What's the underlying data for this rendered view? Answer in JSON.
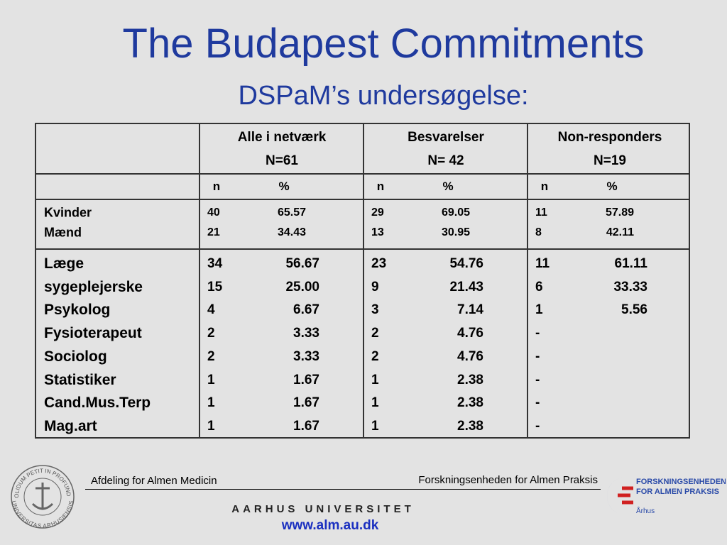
{
  "title": "The Budapest Commitments",
  "subtitle": "DSPaM’s undersøgelse:",
  "table": {
    "groups": [
      {
        "name": "Alle i netværk",
        "n": "N=61"
      },
      {
        "name": "Besvarelser",
        "n": "N= 42"
      },
      {
        "name": "Non-responders",
        "n": "N=19"
      }
    ],
    "subheader": [
      [
        "n",
        "%"
      ],
      [
        "n",
        "%"
      ],
      [
        "n",
        "%"
      ]
    ],
    "gender": [
      {
        "label": "Kvinder",
        "values": [
          [
            "40",
            "65.57"
          ],
          [
            "29",
            "69.05"
          ],
          [
            "11",
            "57.89"
          ]
        ]
      },
      {
        "label": "Mænd",
        "values": [
          [
            "21",
            "34.43"
          ],
          [
            "13",
            "30.95"
          ],
          [
            "8",
            "42.11"
          ]
        ]
      }
    ],
    "professions": [
      {
        "label": "Læge",
        "values": [
          [
            "34",
            "56.67"
          ],
          [
            "23",
            "54.76"
          ],
          [
            "11",
            "61.11"
          ]
        ]
      },
      {
        "label": "sygeplejerske",
        "values": [
          [
            "15",
            "25.00"
          ],
          [
            "9",
            "21.43"
          ],
          [
            "6",
            "33.33"
          ]
        ]
      },
      {
        "label": "Psykolog",
        "values": [
          [
            "4",
            "6.67"
          ],
          [
            "3",
            "7.14"
          ],
          [
            "1",
            "5.56"
          ]
        ]
      },
      {
        "label": "Fysioterapeut",
        "values": [
          [
            "2",
            "3.33"
          ],
          [
            "2",
            "4.76"
          ],
          [
            "-"
          ]
        ]
      },
      {
        "label": "Sociolog",
        "values": [
          [
            "2",
            "3.33"
          ],
          [
            "2",
            "4.76"
          ],
          [
            "-"
          ]
        ]
      },
      {
        "label": "Statistiker",
        "values": [
          [
            "1",
            "1.67"
          ],
          [
            "1",
            "2.38"
          ],
          [
            "-"
          ]
        ]
      },
      {
        "label": "Cand.Mus.Terp",
        "values": [
          [
            "1",
            "1.67"
          ],
          [
            "1",
            "2.38"
          ],
          [
            "-"
          ]
        ]
      },
      {
        "label": "Mag.art",
        "values": [
          [
            "1",
            "1.67"
          ],
          [
            "1",
            "2.38"
          ],
          [
            "-"
          ]
        ]
      }
    ]
  },
  "footer": {
    "left": "Afdeling for Almen Medicin",
    "right": "Forskningsenheden for Almen Praksis",
    "university": "AARHUS UNIVERSITET",
    "url": "www.alm.au.dk",
    "seal_top": "SOLIDUM PETIT IN PROFUNDIS",
    "seal_bottom": "UNIVERSITAS ARHUSIENSIS",
    "logo_line1": "FORSKNINGSENHEDEN",
    "logo_line2": "FOR ALMEN PRAKSIS",
    "logo_city": "Århus"
  }
}
